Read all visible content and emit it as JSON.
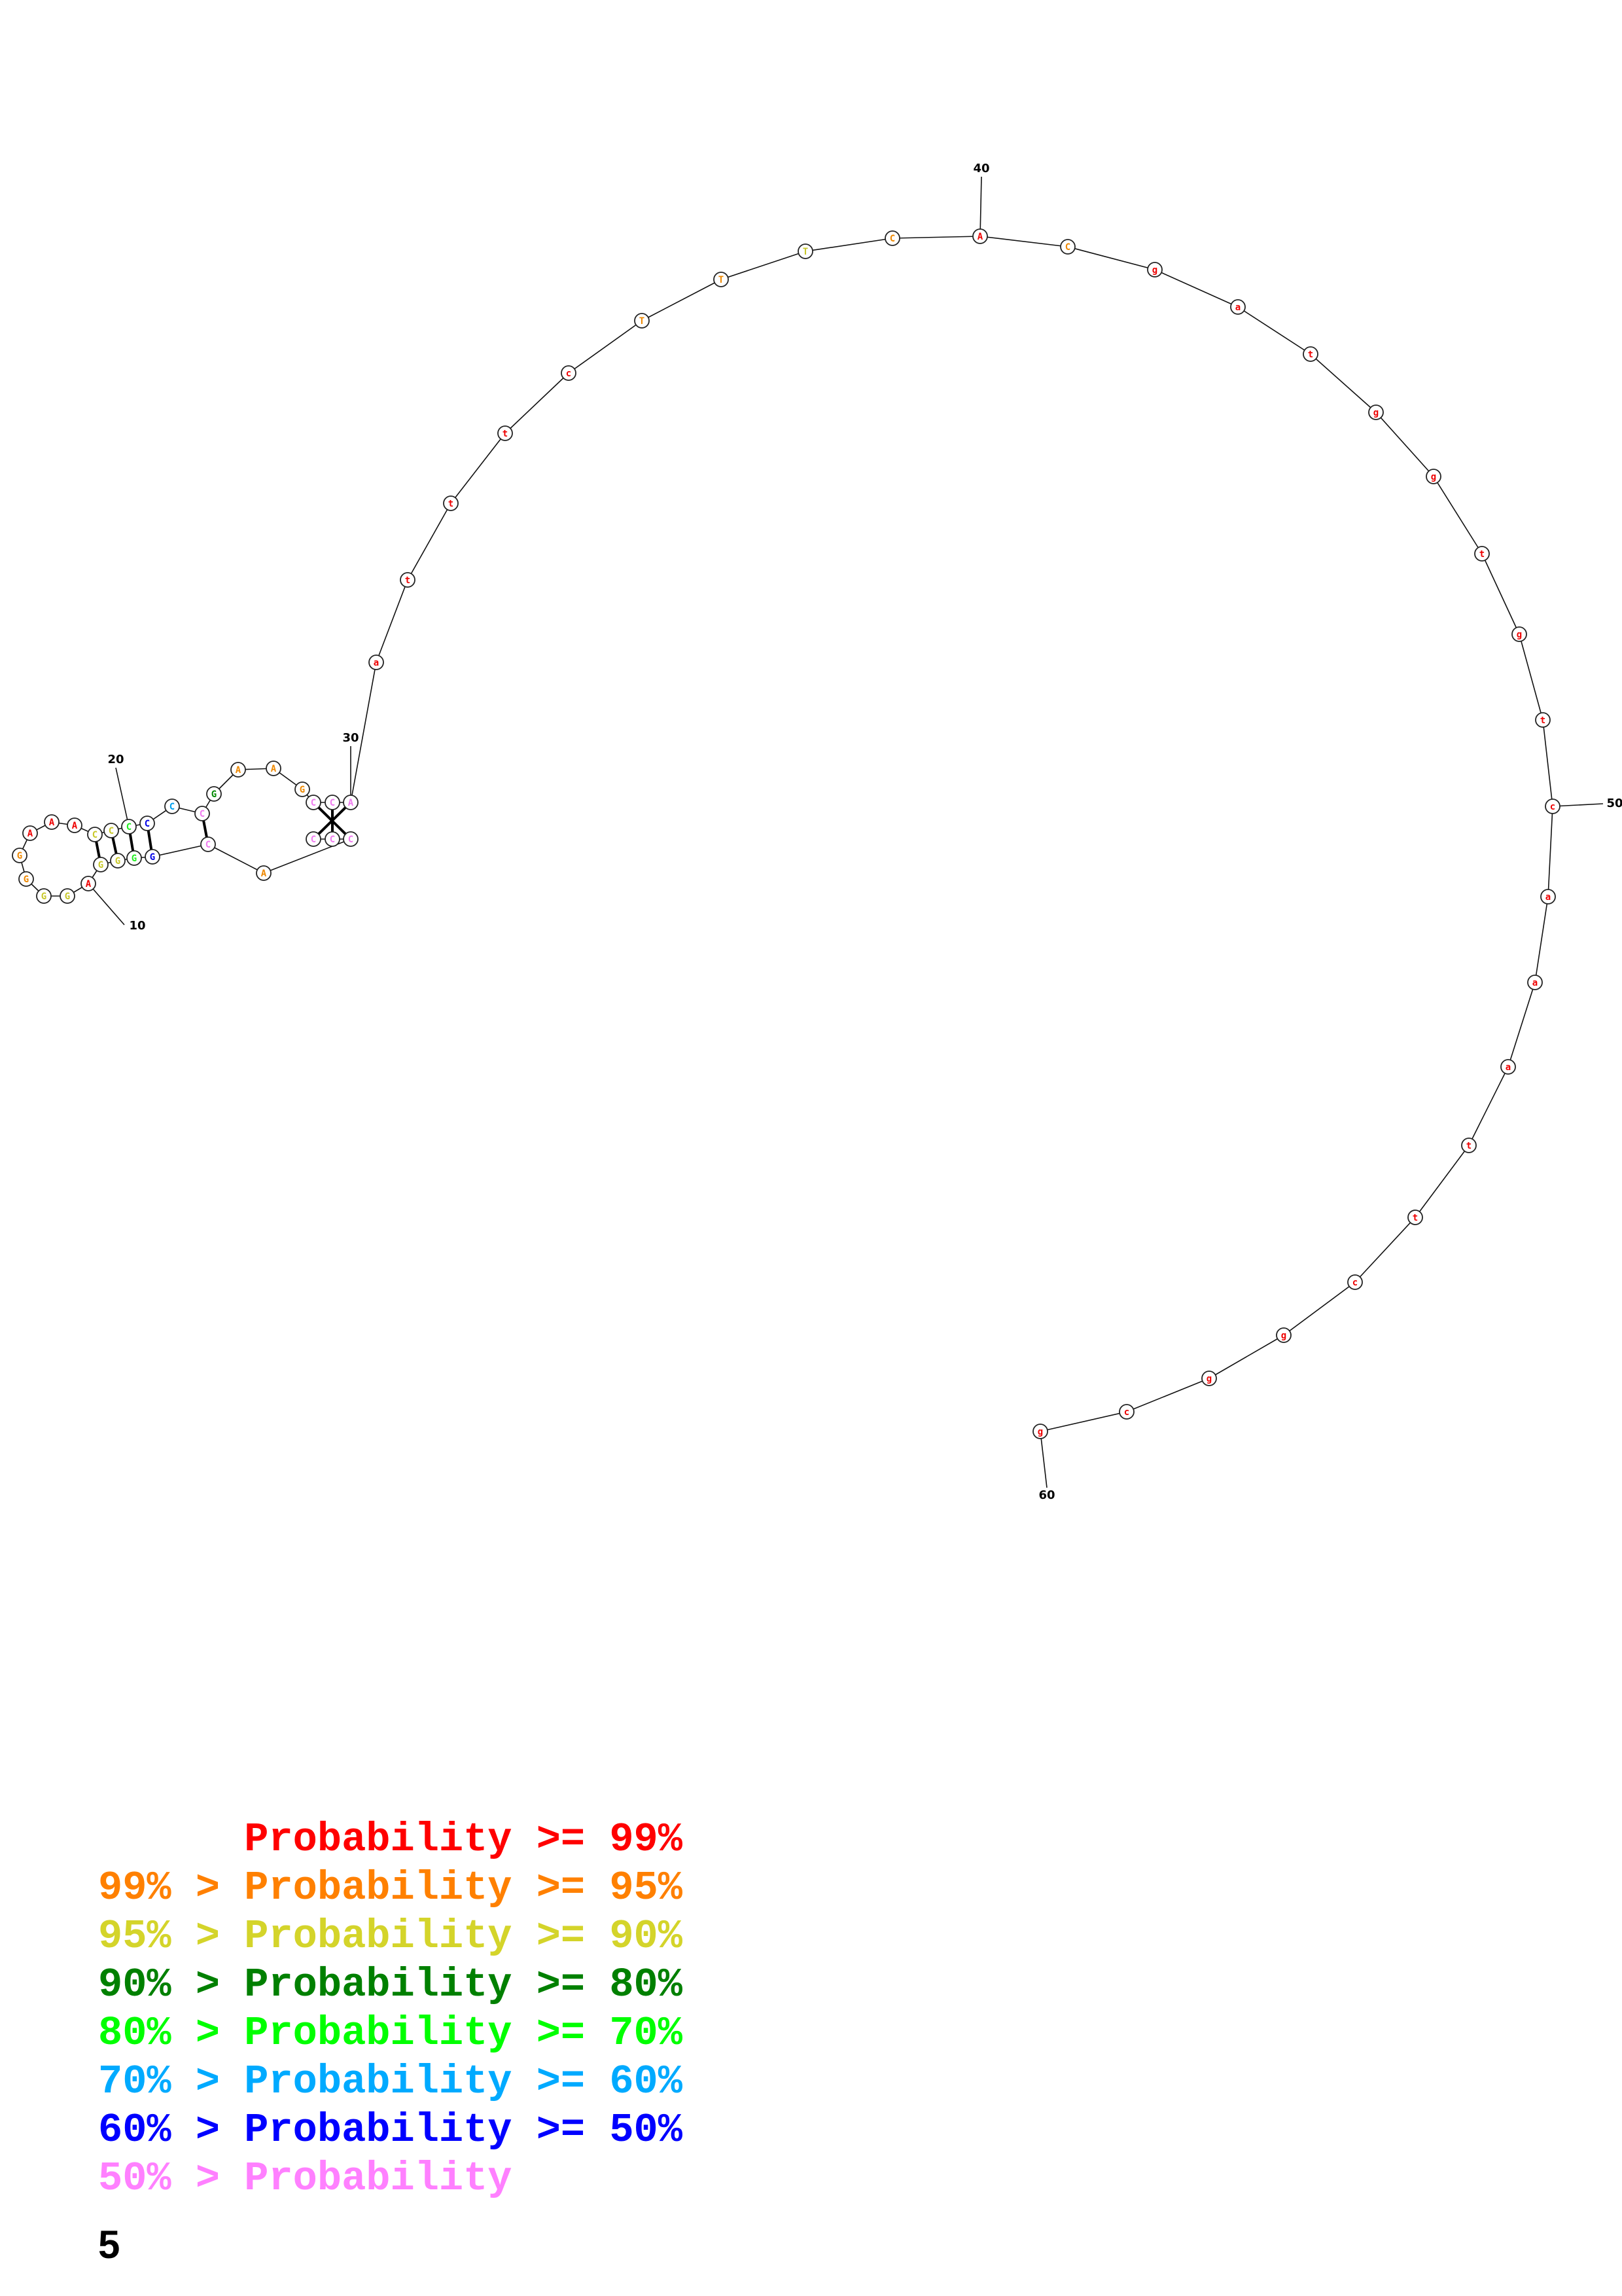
{
  "structure": {
    "nucleotides": [
      {
        "n": 1,
        "base": "C",
        "color": "#f07cf0"
      },
      {
        "n": 2,
        "base": "C",
        "color": "#f07cf0"
      },
      {
        "n": 3,
        "base": "C",
        "color": "#f07cf0"
      },
      {
        "n": 4,
        "base": "A",
        "color": "#ee8800"
      },
      {
        "n": 5,
        "base": "C",
        "color": "#f07cf0"
      },
      {
        "n": 6,
        "base": "G",
        "color": "#0000e6"
      },
      {
        "n": 7,
        "base": "G",
        "color": "#22ee22"
      },
      {
        "n": 8,
        "base": "G",
        "color": "#c8c82a"
      },
      {
        "n": 9,
        "base": "G",
        "color": "#c8c82a"
      },
      {
        "n": 10,
        "base": "A",
        "color": "#ee0000"
      },
      {
        "n": 11,
        "base": "G",
        "color": "#c8c82a"
      },
      {
        "n": 12,
        "base": "G",
        "color": "#c8c82a"
      },
      {
        "n": 13,
        "base": "G",
        "color": "#ee8800"
      },
      {
        "n": 14,
        "base": "G",
        "color": "#ee8800"
      },
      {
        "n": 15,
        "base": "A",
        "color": "#ee0000"
      },
      {
        "n": 16,
        "base": "A",
        "color": "#ee0000"
      },
      {
        "n": 17,
        "base": "A",
        "color": "#ee0000"
      },
      {
        "n": 18,
        "base": "C",
        "color": "#c8c82a"
      },
      {
        "n": 19,
        "base": "C",
        "color": "#c8c82a"
      },
      {
        "n": 20,
        "base": "C",
        "color": "#22ee22"
      },
      {
        "n": 21,
        "base": "C",
        "color": "#0000e6"
      },
      {
        "n": 22,
        "base": "C",
        "color": "#00a0ee"
      },
      {
        "n": 23,
        "base": "C",
        "color": "#f07cf0"
      },
      {
        "n": 24,
        "base": "G",
        "color": "#008800"
      },
      {
        "n": 25,
        "base": "A",
        "color": "#ee8800"
      },
      {
        "n": 26,
        "base": "A",
        "color": "#ee8800"
      },
      {
        "n": 27,
        "base": "G",
        "color": "#ee8800"
      },
      {
        "n": 28,
        "base": "C",
        "color": "#f07cf0"
      },
      {
        "n": 29,
        "base": "C",
        "color": "#f07cf0"
      },
      {
        "n": 30,
        "base": "A",
        "color": "#f07cf0"
      },
      {
        "n": 31,
        "base": "a",
        "color": "#ee0000"
      },
      {
        "n": 32,
        "base": "t",
        "color": "#ee0000"
      },
      {
        "n": 33,
        "base": "t",
        "color": "#ee0000"
      },
      {
        "n": 34,
        "base": "t",
        "color": "#ee0000"
      },
      {
        "n": 35,
        "base": "c",
        "color": "#ee0000"
      },
      {
        "n": 36,
        "base": "T",
        "color": "#ee8800"
      },
      {
        "n": 37,
        "base": "T",
        "color": "#ee8800"
      },
      {
        "n": 38,
        "base": "T",
        "color": "#c8c82a"
      },
      {
        "n": 39,
        "base": "C",
        "color": "#ee8800"
      },
      {
        "n": 40,
        "base": "A",
        "color": "#ee0000"
      },
      {
        "n": 41,
        "base": "C",
        "color": "#ee8800"
      },
      {
        "n": 42,
        "base": "g",
        "color": "#ee0000"
      },
      {
        "n": 43,
        "base": "a",
        "color": "#ee0000"
      },
      {
        "n": 44,
        "base": "t",
        "color": "#ee0000"
      },
      {
        "n": 45,
        "base": "g",
        "color": "#ee0000"
      },
      {
        "n": 46,
        "base": "g",
        "color": "#ee0000"
      },
      {
        "n": 47,
        "base": "t",
        "color": "#ee0000"
      },
      {
        "n": 48,
        "base": "g",
        "color": "#ee0000"
      },
      {
        "n": 49,
        "base": "t",
        "color": "#ee0000"
      },
      {
        "n": 50,
        "base": "c",
        "color": "#ee0000"
      },
      {
        "n": 51,
        "base": "a",
        "color": "#ee0000"
      },
      {
        "n": 52,
        "base": "a",
        "color": "#ee0000"
      },
      {
        "n": 53,
        "base": "a",
        "color": "#ee0000"
      },
      {
        "n": 54,
        "base": "t",
        "color": "#ee0000"
      },
      {
        "n": 55,
        "base": "t",
        "color": "#ee0000"
      },
      {
        "n": 56,
        "base": "c",
        "color": "#ee0000"
      },
      {
        "n": 57,
        "base": "g",
        "color": "#ee0000"
      },
      {
        "n": 58,
        "base": "g",
        "color": "#ee0000"
      },
      {
        "n": 59,
        "base": "c",
        "color": "#ee0000"
      },
      {
        "n": 60,
        "base": "g",
        "color": "#ee0000"
      }
    ],
    "pairs": [
      [
        1,
        30
      ],
      [
        2,
        29
      ],
      [
        3,
        28
      ],
      [
        5,
        23
      ],
      [
        6,
        21
      ],
      [
        7,
        20
      ],
      [
        8,
        19
      ],
      [
        9,
        18
      ]
    ],
    "position_labels": [
      "10",
      "20",
      "30",
      "40",
      "50",
      "60"
    ]
  },
  "legend": [
    {
      "prefix": "",
      "text": "Probability >= 99%",
      "color": "#ff0000"
    },
    {
      "prefix": "99% > ",
      "text": "Probability >= 95%",
      "color": "#ff8000"
    },
    {
      "prefix": "95% > ",
      "text": "Probability >= 90%",
      "color": "#d4d42a"
    },
    {
      "prefix": "90% > ",
      "text": "Probability >= 80%",
      "color": "#008000"
    },
    {
      "prefix": "80% > ",
      "text": "Probability >= 70%",
      "color": "#00ff00"
    },
    {
      "prefix": "70% > ",
      "text": "Probability >= 60%",
      "color": "#00aaff"
    },
    {
      "prefix": "60% > ",
      "text": "Probability >= 50%",
      "color": "#0000ff"
    },
    {
      "prefix": "50% > ",
      "text": "Probability",
      "color": "#ff80ff"
    }
  ],
  "footer": "5"
}
